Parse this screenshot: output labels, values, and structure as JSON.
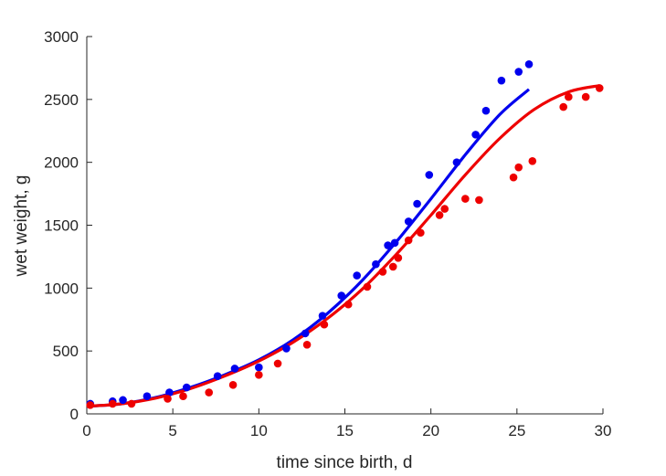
{
  "chart_data": {
    "type": "scatter",
    "xlabel": "time since birth, d",
    "ylabel": "wet weight, g",
    "xlim": [
      0,
      30
    ],
    "ylim": [
      0,
      3000
    ],
    "xticks": [
      "0",
      "5",
      "10",
      "15",
      "20",
      "25",
      "30"
    ],
    "yticks": [
      "0",
      "500",
      "1000",
      "1500",
      "2000",
      "2500",
      "3000"
    ],
    "grid": false,
    "legend": "none",
    "series": [
      {
        "color": "#0000ee",
        "marker": "dot",
        "x": [
          0.2,
          1.5,
          2.1,
          3.5,
          4.8,
          5.8,
          7.6,
          8.6,
          10.0,
          11.6,
          12.7,
          13.7,
          14.8,
          15.7,
          16.8,
          17.5,
          17.9,
          18.7,
          19.2,
          19.9,
          21.5,
          22.6,
          23.2,
          24.1,
          25.1,
          25.7
        ],
        "y": [
          80,
          100,
          110,
          140,
          170,
          210,
          300,
          360,
          370,
          520,
          640,
          780,
          940,
          1100,
          1190,
          1340,
          1360,
          1530,
          1670,
          1900,
          2000,
          2220,
          2410,
          2650,
          2720,
          2780
        ]
      },
      {
        "color": "#ee0000",
        "marker": "dot",
        "x": [
          0.2,
          1.5,
          2.6,
          4.7,
          5.6,
          7.1,
          8.5,
          10.0,
          11.1,
          12.8,
          13.8,
          15.2,
          16.3,
          17.2,
          17.8,
          18.1,
          18.7,
          19.4,
          20.5,
          20.8,
          22.0,
          22.8,
          24.8,
          25.1,
          25.9,
          27.7,
          28.0,
          29.0,
          29.8
        ],
        "y": [
          70,
          80,
          80,
          120,
          140,
          170,
          230,
          310,
          400,
          550,
          710,
          870,
          1010,
          1130,
          1170,
          1240,
          1380,
          1440,
          1580,
          1630,
          1710,
          1700,
          1880,
          1960,
          2010,
          2440,
          2520,
          2520,
          2590
        ]
      }
    ],
    "fits": [
      {
        "color": "#0000ee",
        "x": [
          0,
          2,
          4,
          6,
          8,
          10,
          12,
          14,
          16,
          18,
          20,
          22,
          24,
          25.7
        ],
        "y": [
          60,
          80,
          130,
          210,
          310,
          430,
          590,
          800,
          1060,
          1370,
          1710,
          2060,
          2380,
          2580
        ]
      },
      {
        "color": "#ee0000",
        "x": [
          0,
          2,
          4,
          6,
          8,
          10,
          12,
          14,
          16,
          18,
          20,
          22,
          24,
          26,
          28,
          29.8
        ],
        "y": [
          60,
          80,
          125,
          200,
          300,
          420,
          570,
          760,
          990,
          1270,
          1580,
          1900,
          2190,
          2420,
          2560,
          2610
        ]
      }
    ]
  }
}
